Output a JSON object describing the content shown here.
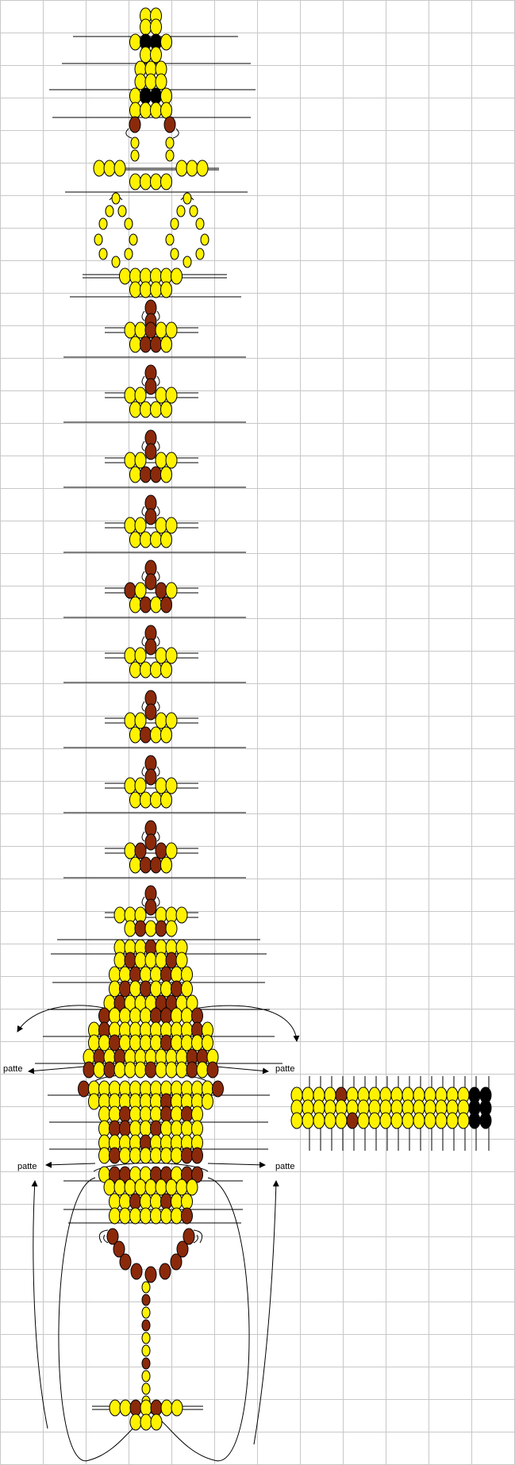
{
  "colors": {
    "grid": "#C8C8C8",
    "bead_yellow": "#FFF200",
    "bead_brown": "#8B2A0A",
    "bead_black": "#000000",
    "background": "#FFFFFF"
  },
  "labels": {
    "leg_left_upper": "patte",
    "leg_right_upper": "patte",
    "leg_left_lower": "patte",
    "leg_right_lower": "patte"
  }
}
